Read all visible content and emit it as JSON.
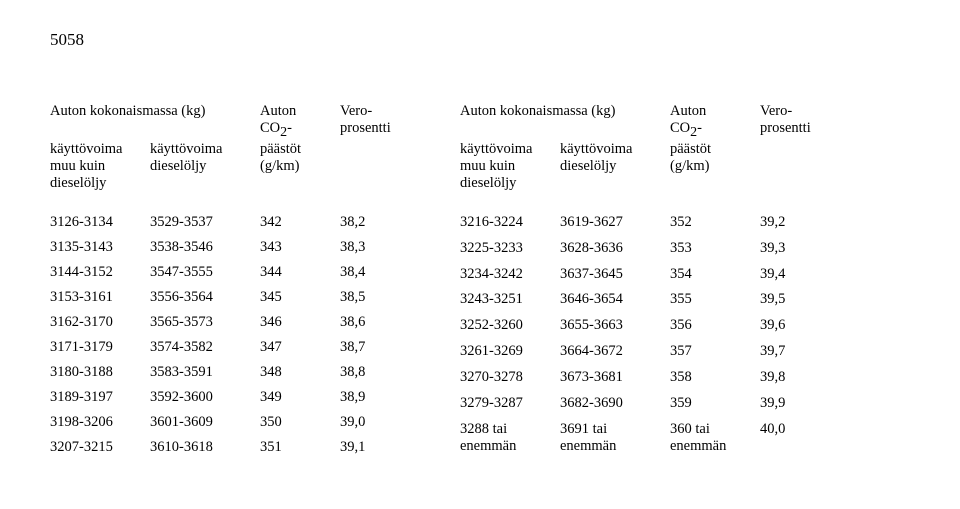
{
  "page_number": "5058",
  "headers": {
    "mass": "Auton kokonaismassa (kg)",
    "col_muu": "käyttövoima\nmuu kuin\ndieselöljy",
    "col_diesel": "käyttövoima\ndieselöljy",
    "col_co2_a": "Auton",
    "col_co2_b": "CO",
    "col_co2_sub": "2",
    "col_co2_c": "-",
    "col_co2_d": "päästöt",
    "col_co2_e": "(g/km)",
    "col_vero_a": "Vero-",
    "col_vero_b": "prosentti"
  },
  "left_rows": [
    [
      "3126-3134",
      "3529-3537",
      "342",
      "38,2"
    ],
    [
      "3135-3143",
      "3538-3546",
      "343",
      "38,3"
    ],
    [
      "3144-3152",
      "3547-3555",
      "344",
      "38,4"
    ],
    [
      "3153-3161",
      "3556-3564",
      "345",
      "38,5"
    ],
    [
      "3162-3170",
      "3565-3573",
      "346",
      "38,6"
    ],
    [
      "3171-3179",
      "3574-3582",
      "347",
      "38,7"
    ],
    [
      "3180-3188",
      "3583-3591",
      "348",
      "38,8"
    ],
    [
      "3189-3197",
      "3592-3600",
      "349",
      "38,9"
    ],
    [
      "3198-3206",
      "3601-3609",
      "350",
      "39,0"
    ],
    [
      "3207-3215",
      "3610-3618",
      "351",
      "39,1"
    ]
  ],
  "right_rows": [
    [
      "3216-3224",
      "3619-3627",
      "352",
      "39,2"
    ],
    [
      "3225-3233",
      "3628-3636",
      "353",
      "39,3"
    ],
    [
      "3234-3242",
      "3637-3645",
      "354",
      "39,4"
    ],
    [
      "3243-3251",
      "3646-3654",
      "355",
      "39,5"
    ],
    [
      "3252-3260",
      "3655-3663",
      "356",
      "39,6"
    ],
    [
      "3261-3269",
      "3664-3672",
      "357",
      "39,7"
    ],
    [
      "3270-3278",
      "3673-3681",
      "358",
      "39,8"
    ],
    [
      "3279-3287",
      "3682-3690",
      "359",
      "39,9"
    ],
    [
      "3288 tai\nenemmän",
      "3691 tai\nenemmän",
      "360 tai\nenemmän",
      "40,0"
    ]
  ],
  "col_widths": {
    "muu": 100,
    "diesel": 100,
    "co2": 80,
    "vero": 80
  }
}
